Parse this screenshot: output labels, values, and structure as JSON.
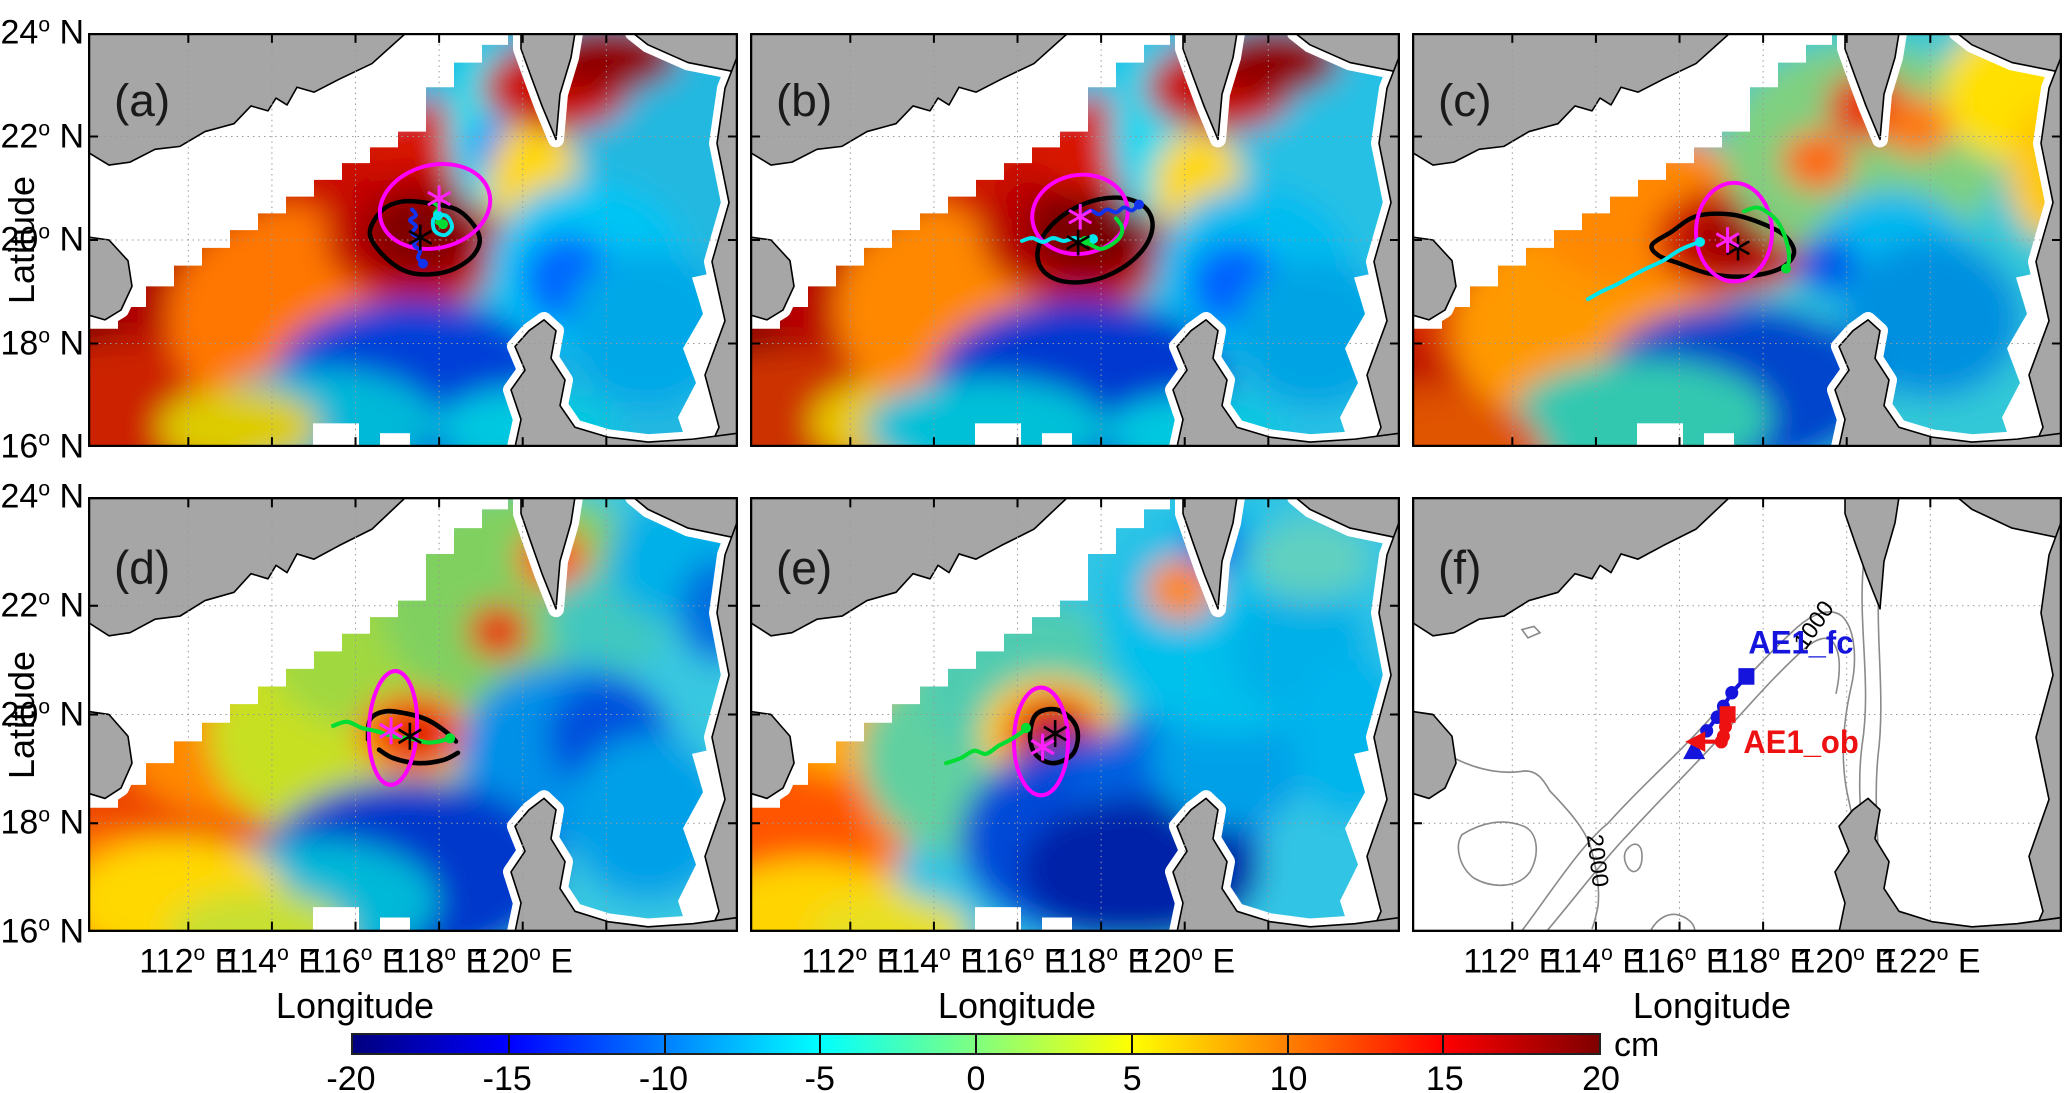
{
  "figure_title": "",
  "axes": {
    "lat_label": "Latitude",
    "lon_label": "Longitude",
    "deg": "o",
    "lat_suffix": "N",
    "lon_suffix": "E"
  },
  "chart_data": {
    "type": "heatmap",
    "description": "Six-panel map figure of sea level anomaly (cm, jet colormap) over the northern South China Sea. Panels (a)-(e) show the anomaly field at successive times with anticyclonic eddy AE1: magenta ellipse = forecast eddy contour, black contour = observed eddy edge, black asterisk = observed eddy center, magenta asterisk = forecast eddy center, colored curves = tracked eddy-edge/center trajectories. Panel (f) compares the forecast (AE1_fc, blue) and observed (AE1_ob, red) eddy-center trajectories over 1000 m and 2000 m isobaths.",
    "x": {
      "label": "Longitude",
      "unit": "E",
      "range_deg": [
        109.6,
        125.1
      ],
      "ticks_panels_abcde": [
        112,
        114,
        116,
        118,
        120
      ],
      "ticks_panel_f": [
        112,
        114,
        116,
        118,
        120,
        122
      ]
    },
    "y": {
      "label": "Latitude",
      "unit": "N",
      "range_deg": [
        16,
        24
      ],
      "ticks": [
        24,
        22,
        20,
        18,
        16
      ]
    },
    "grid": true,
    "colorbar": {
      "label": "cm",
      "colormap": "jet",
      "range": [
        -20,
        20
      ],
      "ticks": [
        -20,
        -15,
        -10,
        -5,
        0,
        5,
        10,
        15,
        20
      ]
    },
    "panels": [
      {
        "label": "(a)",
        "eddy_center_observed": [
          117.55,
          20.05
        ],
        "eddy_center_forecast": [
          118.0,
          20.8
        ]
      },
      {
        "label": "(b)",
        "eddy_center_observed": [
          117.45,
          19.95
        ],
        "eddy_center_forecast": [
          117.5,
          20.45
        ]
      },
      {
        "label": "(c)",
        "eddy_center_observed": [
          117.4,
          19.85
        ],
        "eddy_center_forecast": [
          117.15,
          20.0
        ]
      },
      {
        "label": "(d)",
        "eddy_center_observed": [
          117.3,
          19.6
        ],
        "eddy_center_forecast": [
          116.85,
          19.7
        ]
      },
      {
        "label": "(e)",
        "eddy_center_observed": [
          116.9,
          19.65
        ],
        "eddy_center_forecast": [
          116.6,
          19.4
        ]
      },
      {
        "label": "(f)",
        "bathymetry_contour_labels": [
          "1000",
          "2000"
        ],
        "series": [
          {
            "name": "AE1_fc",
            "color": "#1414dd",
            "points": [
              [
                117.6,
                20.7
              ],
              [
                117.25,
                20.4
              ],
              [
                117.05,
                20.15
              ],
              [
                116.9,
                19.95
              ],
              [
                116.65,
                19.7
              ],
              [
                116.35,
                19.35
              ]
            ],
            "markers": [
              "square",
              "circle",
              "circle",
              "circle",
              "circle",
              "triangle-up"
            ]
          },
          {
            "name": "AE1_ob",
            "color": "#ee1111",
            "points": [
              [
                117.15,
                20.0
              ],
              [
                117.1,
                19.78
              ],
              [
                117.05,
                19.6
              ],
              [
                117.0,
                19.5
              ],
              [
                116.4,
                19.5
              ]
            ],
            "markers": [
              "square",
              "circle",
              "circle",
              "circle",
              "triangle-left"
            ]
          }
        ]
      }
    ]
  }
}
